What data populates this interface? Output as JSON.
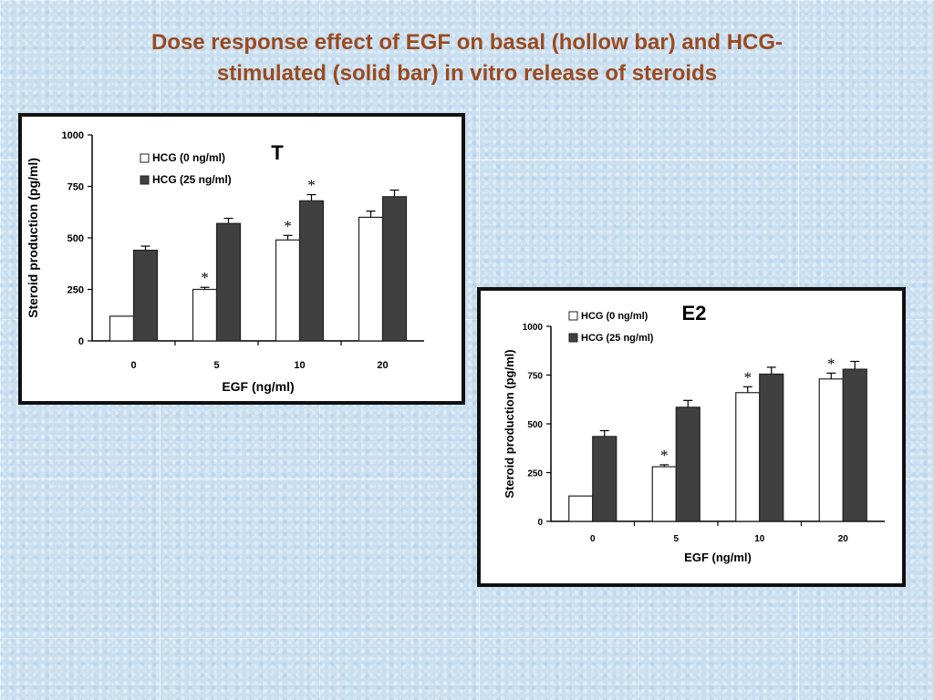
{
  "title": {
    "line1": "Dose response effect of EGF on basal (hollow bar) and HCG-",
    "line2": "stimulated (solid bar) in vitro release of steroids"
  },
  "colors": {
    "title": "#9b4a1f",
    "solid_bar": "#404040",
    "hollow_bar": "#ffffff",
    "axis": "#000000"
  },
  "chart_data": [
    {
      "type": "bar",
      "panel_label": "T",
      "categories": [
        "0",
        "5",
        "10",
        "20"
      ],
      "xlabel": "EGF (ng/ml)",
      "ylabel": "Steroid production (pg/ml)",
      "ylim": [
        0,
        1000
      ],
      "yticks": [
        "0",
        "250",
        "500",
        "750",
        "1000"
      ],
      "legend_position": "top-left",
      "series": [
        {
          "name": "HCG (0 ng/ml)",
          "fill": "hollow",
          "values": [
            120,
            250,
            490,
            600
          ],
          "errors": [
            0,
            10,
            22,
            30
          ]
        },
        {
          "name": "HCG (25 ng/ml)",
          "fill": "solid",
          "values": [
            440,
            570,
            680,
            700
          ],
          "errors": [
            20,
            25,
            30,
            32
          ]
        }
      ],
      "annotations": [
        {
          "category": "5",
          "series": 0,
          "text": "*"
        },
        {
          "category": "10",
          "series": 0,
          "text": "*"
        },
        {
          "category": "10",
          "series": 1,
          "text": "*"
        }
      ]
    },
    {
      "type": "bar",
      "panel_label": "E2",
      "categories": [
        "0",
        "5",
        "10",
        "20"
      ],
      "xlabel": "EGF (ng/ml)",
      "ylabel": "Steroid production (pg/ml)",
      "ylim": [
        0,
        1000
      ],
      "yticks": [
        "0",
        "250",
        "500",
        "750",
        "1000"
      ],
      "legend_position": "top-left",
      "series": [
        {
          "name": "HCG (0 ng/ml)",
          "fill": "hollow",
          "values": [
            130,
            280,
            660,
            730
          ],
          "errors": [
            0,
            10,
            30,
            30
          ]
        },
        {
          "name": "HCG (25 ng/ml)",
          "fill": "solid",
          "values": [
            435,
            585,
            755,
            780
          ],
          "errors": [
            30,
            35,
            35,
            40
          ]
        }
      ],
      "annotations": [
        {
          "category": "5",
          "series": 0,
          "text": "*"
        },
        {
          "category": "10",
          "series": 0,
          "text": "*"
        },
        {
          "category": "20",
          "series": 0,
          "text": "*"
        }
      ]
    }
  ]
}
